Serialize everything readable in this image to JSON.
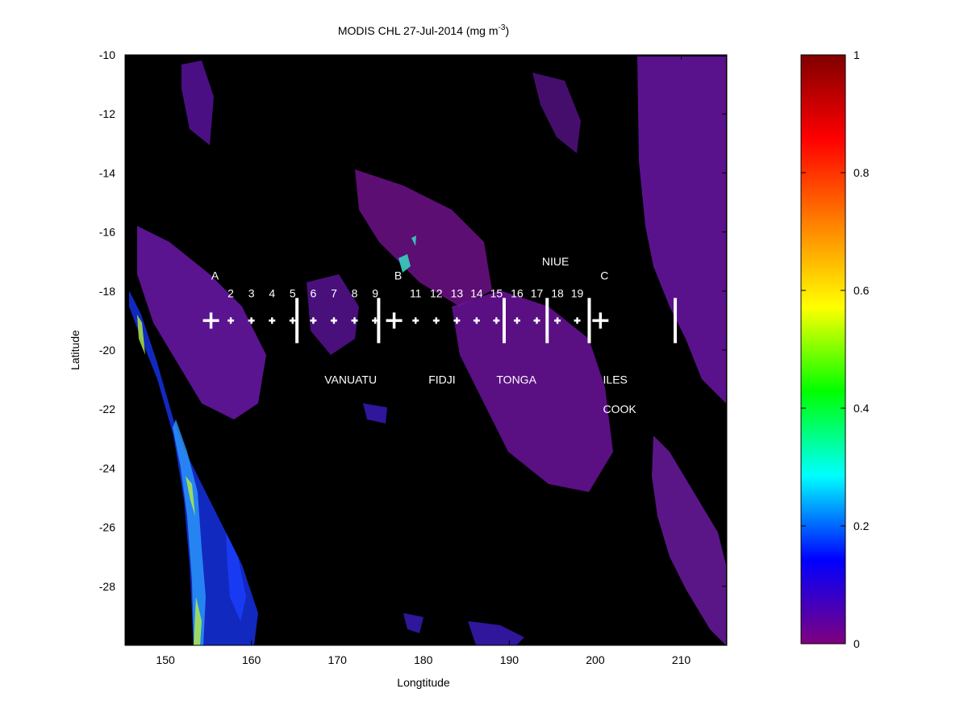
{
  "chart_data": {
    "type": "heatmap",
    "title_main": "MODIS CHL 27-Jul-2014 (mg m",
    "title_sup": "-3",
    "title_close": ")",
    "xlabel": "Longtitude",
    "ylabel": "Latitude",
    "xlim": [
      145.3,
      215.3
    ],
    "ylim": [
      -30,
      -10
    ],
    "x_ticks": [
      150,
      160,
      170,
      180,
      190,
      200,
      210
    ],
    "y_ticks": [
      -10,
      -12,
      -14,
      -16,
      -18,
      -20,
      -22,
      -24,
      -26,
      -28
    ],
    "colorbar": {
      "range": [
        0,
        1
      ],
      "ticks": [
        0,
        0.2,
        0.4,
        0.6,
        0.8,
        1
      ],
      "tick_labels": [
        "0",
        "0.2",
        "0.4",
        "0.6",
        "0.8",
        "1"
      ],
      "colors": [
        "#7f007f",
        "#0000ff",
        "#00ffff",
        "#00ff00",
        "#ffff00",
        "#ff8000",
        "#ff0000",
        "#800000"
      ]
    },
    "background_color": "#000000",
    "station_latitude": -19,
    "large_markers": [
      {
        "label": "A",
        "lon": 155.3
      },
      {
        "label": "B",
        "lon": 176.6
      },
      {
        "label": "C",
        "lon": 200.6
      }
    ],
    "small_markers": [
      {
        "label": "2",
        "lon": 157.6
      },
      {
        "label": "3",
        "lon": 160.0
      },
      {
        "label": "4",
        "lon": 162.4
      },
      {
        "label": "5",
        "lon": 164.8
      },
      {
        "label": "6",
        "lon": 167.2
      },
      {
        "label": "7",
        "lon": 169.6
      },
      {
        "label": "8",
        "lon": 172.0
      },
      {
        "label": "9",
        "lon": 174.4
      },
      {
        "label": "11",
        "lon": 179.1
      },
      {
        "label": "12",
        "lon": 181.5
      },
      {
        "label": "13",
        "lon": 183.9
      },
      {
        "label": "14",
        "lon": 186.2
      },
      {
        "label": "15",
        "lon": 188.5
      },
      {
        "label": "16",
        "lon": 190.9
      },
      {
        "label": "17",
        "lon": 193.2
      },
      {
        "label": "18",
        "lon": 195.6
      },
      {
        "label": "19",
        "lon": 197.9
      }
    ],
    "boundary_lines": [
      165.3,
      174.8,
      189.4,
      194.4,
      199.3,
      209.3
    ],
    "region_labels": [
      {
        "text": "VANUATU",
        "lon": 168.5,
        "lat": -21.0
      },
      {
        "text": "FIDJI",
        "lon": 180.6,
        "lat": -21.0
      },
      {
        "text": "TONGA",
        "lon": 188.5,
        "lat": -21.0
      },
      {
        "text": "NIUE",
        "lon": 193.8,
        "lat": -17.0
      },
      {
        "text": "ILES",
        "lon": 200.9,
        "lat": -21.0
      },
      {
        "text": "COOK",
        "lon": 200.9,
        "lat": -22.0
      }
    ]
  }
}
